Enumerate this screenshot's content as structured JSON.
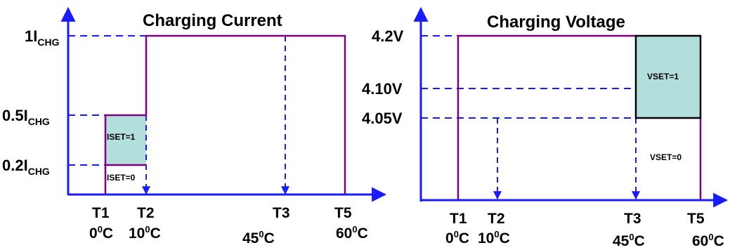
{
  "colors": {
    "axis": "#1a1aff",
    "dash": "#1a1aff",
    "profile": "#800080",
    "box_fill": "#b2dfdb",
    "box_border_right": "#000000"
  },
  "left_panel": {
    "title": "Charging Current",
    "y_labels": [
      {
        "main": "1I",
        "sub": "CHG"
      },
      {
        "main": "0.5I",
        "sub": "CHG"
      },
      {
        "main": "0.2I",
        "sub": "CHG"
      }
    ],
    "temp_points": [
      "T1",
      "T2",
      "T3",
      "T5"
    ],
    "temp_values": [
      {
        "num": "0",
        "sup": "0",
        "unit": "C"
      },
      {
        "num": "10",
        "sup": "0",
        "unit": "C"
      },
      {
        "num": "45",
        "sup": "0",
        "unit": "C"
      },
      {
        "num": "60",
        "sup": "0",
        "unit": "C"
      }
    ],
    "box_labels": [
      "ISET=1",
      "ISET=0"
    ]
  },
  "right_panel": {
    "title": "Charging Voltage",
    "y_labels": [
      "4.2V",
      "4.10V",
      "4.05V"
    ],
    "temp_points": [
      "T1",
      "T2",
      "T3",
      "T5"
    ],
    "temp_values": [
      {
        "num": "0",
        "sup": "0",
        "unit": "C"
      },
      {
        "num": "10",
        "sup": "0",
        "unit": "C"
      },
      {
        "num": "45",
        "sup": "0",
        "unit": "C"
      },
      {
        "num": "60",
        "sup": "0",
        "unit": "C"
      }
    ],
    "box_labels": [
      "VSET=1",
      "VSET=0"
    ]
  }
}
